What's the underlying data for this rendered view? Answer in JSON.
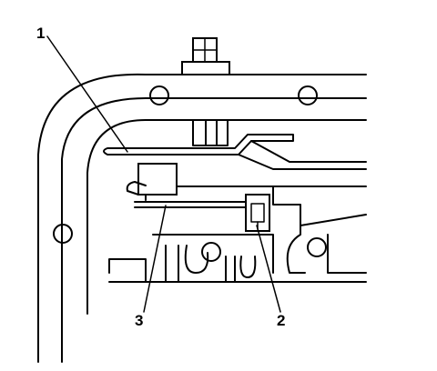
{
  "figure": {
    "callouts": [
      {
        "id": "1",
        "label": "1"
      },
      {
        "id": "2",
        "label": "2"
      },
      {
        "id": "3",
        "label": "3"
      }
    ]
  }
}
